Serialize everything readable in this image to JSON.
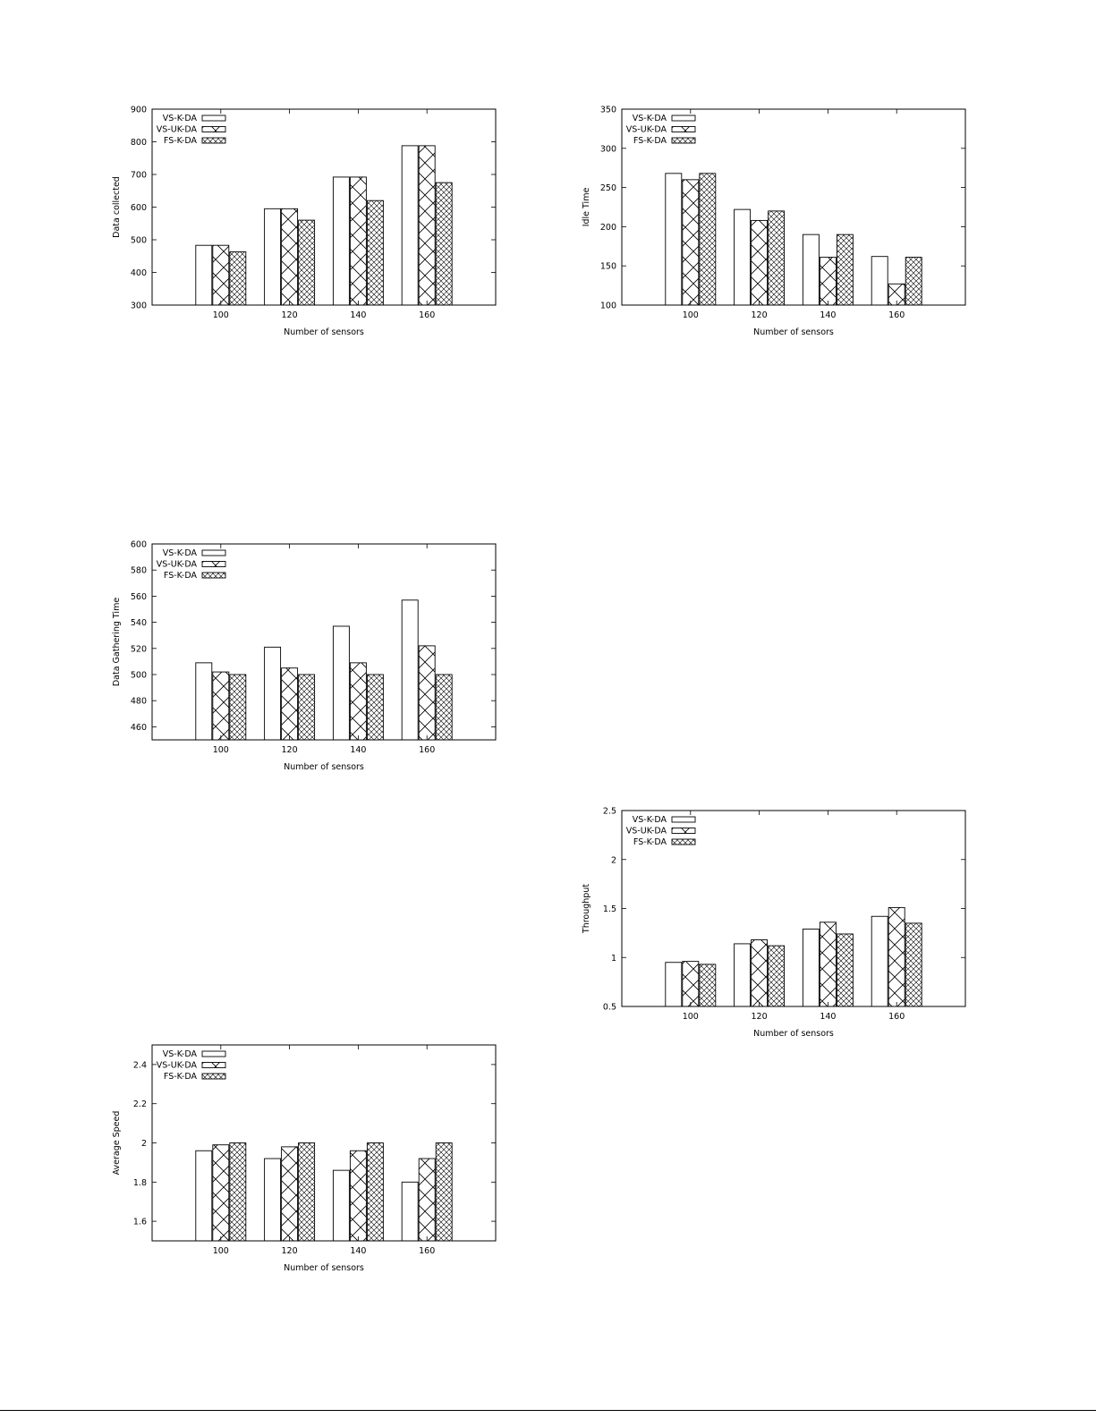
{
  "chart_data": [
    {
      "id": "data-collected",
      "type": "bar",
      "xlabel": "Number of sensors",
      "ylabel": "Data collected",
      "categories": [
        "100",
        "120",
        "140",
        "160"
      ],
      "ylim": [
        300,
        900
      ],
      "yticks": [
        300,
        400,
        500,
        600,
        700,
        800,
        900
      ],
      "legend_position": "top-left",
      "series": [
        {
          "name": "VS-K-DA",
          "values": [
            483,
            595,
            692,
            788
          ]
        },
        {
          "name": "VS-UK-DA",
          "values": [
            483,
            595,
            692,
            788
          ]
        },
        {
          "name": "FS-K-DA",
          "values": [
            463,
            560,
            620,
            675
          ]
        }
      ]
    },
    {
      "id": "idle-time",
      "type": "bar",
      "xlabel": "Number of sensors",
      "ylabel": "Idle Time",
      "categories": [
        "100",
        "120",
        "140",
        "160"
      ],
      "ylim": [
        100,
        350
      ],
      "yticks": [
        100,
        150,
        200,
        250,
        300,
        350
      ],
      "legend_position": "top-left",
      "series": [
        {
          "name": "VS-K-DA",
          "values": [
            268,
            222,
            190,
            162
          ]
        },
        {
          "name": "VS-UK-DA",
          "values": [
            260,
            208,
            161,
            127
          ]
        },
        {
          "name": "FS-K-DA",
          "values": [
            268,
            220,
            190,
            161
          ]
        }
      ]
    },
    {
      "id": "data-gathering-time",
      "type": "bar",
      "xlabel": "Number of sensors",
      "ylabel": "Data Gathering Time",
      "categories": [
        "100",
        "120",
        "140",
        "160"
      ],
      "ylim": [
        450,
        600
      ],
      "yticks": [
        460,
        480,
        500,
        520,
        540,
        560,
        580,
        600
      ],
      "legend_position": "top-left",
      "series": [
        {
          "name": "VS-K-DA",
          "values": [
            509,
            521,
            537,
            557
          ]
        },
        {
          "name": "VS-UK-DA",
          "values": [
            502,
            505,
            509,
            522
          ]
        },
        {
          "name": "FS-K-DA",
          "values": [
            500,
            500,
            500,
            500
          ]
        }
      ]
    },
    {
      "id": "throughput",
      "type": "bar",
      "xlabel": "Number of sensors",
      "ylabel": "Throughput",
      "categories": [
        "100",
        "120",
        "140",
        "160"
      ],
      "ylim": [
        0.5,
        2.5
      ],
      "yticks": [
        0.5,
        1,
        1.5,
        2,
        2.5
      ],
      "legend_position": "top-left",
      "series": [
        {
          "name": "VS-K-DA",
          "values": [
            0.95,
            1.14,
            1.29,
            1.42
          ]
        },
        {
          "name": "VS-UK-DA",
          "values": [
            0.96,
            1.18,
            1.36,
            1.51
          ]
        },
        {
          "name": "FS-K-DA",
          "values": [
            0.93,
            1.12,
            1.24,
            1.35
          ]
        }
      ]
    },
    {
      "id": "average-speed",
      "type": "bar",
      "xlabel": "Number of sensors",
      "ylabel": "Average Speed",
      "categories": [
        "100",
        "120",
        "140",
        "160"
      ],
      "ylim": [
        1.5,
        2.5
      ],
      "yticks": [
        1.6,
        1.8,
        2,
        2.2,
        2.4
      ],
      "legend_position": "top-left",
      "series": [
        {
          "name": "VS-K-DA",
          "values": [
            1.96,
            1.92,
            1.86,
            1.8
          ]
        },
        {
          "name": "VS-UK-DA",
          "values": [
            1.99,
            1.98,
            1.96,
            1.92
          ]
        },
        {
          "name": "FS-K-DA",
          "values": [
            2,
            2,
            2,
            2
          ]
        }
      ]
    }
  ]
}
